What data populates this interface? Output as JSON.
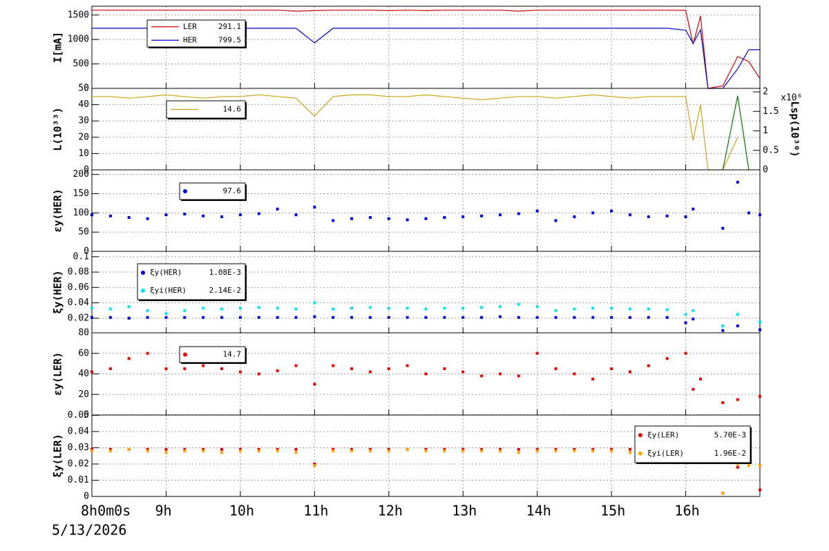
{
  "chart_data": [
    {
      "type": "line",
      "ylabel": "I[mA]",
      "xlim": [
        8,
        17
      ],
      "xticks": [
        8,
        9,
        10,
        11,
        12,
        13,
        14,
        15,
        16
      ],
      "ylim": [
        0,
        1680
      ],
      "yticks": [
        0,
        500,
        1000,
        1500
      ],
      "grid": true,
      "x": [
        8,
        8.25,
        8.5,
        8.75,
        9,
        9.25,
        9.5,
        9.75,
        10,
        10.25,
        10.5,
        10.75,
        11,
        11.25,
        11.5,
        11.75,
        12,
        12.25,
        12.5,
        12.75,
        13,
        13.25,
        13.5,
        13.75,
        14,
        14.25,
        14.5,
        14.75,
        15,
        15.25,
        15.5,
        15.75,
        16,
        16.1,
        16.2,
        16.3,
        16.5,
        16.7,
        16.85,
        17
      ],
      "series": [
        {
          "name": "LER",
          "legend_value": 291.1,
          "color": "#d00000",
          "values": [
            1600,
            1600,
            1600,
            1600,
            1600,
            1600,
            1600,
            1600,
            1600,
            1600,
            1600,
            1580,
            1590,
            1600,
            1600,
            1600,
            1590,
            1600,
            1590,
            1600,
            1600,
            1600,
            1600,
            1580,
            1600,
            1600,
            1600,
            1600,
            1600,
            1600,
            1600,
            1600,
            1595,
            900,
            1480,
            0,
            50,
            650,
            550,
            200
          ]
        },
        {
          "name": "HER",
          "legend_value": 799.5,
          "color": "#0000cc",
          "values": [
            1230,
            1230,
            1230,
            1230,
            1230,
            1230,
            1230,
            1230,
            1230,
            1230,
            1230,
            1230,
            930,
            1230,
            1230,
            1230,
            1230,
            1230,
            1230,
            1230,
            1230,
            1230,
            1230,
            1230,
            1230,
            1230,
            1230,
            1230,
            1230,
            1230,
            1230,
            1230,
            1190,
            920,
            1200,
            0,
            0,
            400,
            790,
            790
          ]
        }
      ]
    },
    {
      "type": "line",
      "ylabel": "L(10³³)",
      "y2label": "Lsp(10³⁰)",
      "y2multiplier": "x10⁶",
      "xlim": [
        8,
        17
      ],
      "xticks": [
        8,
        9,
        10,
        11,
        12,
        13,
        14,
        15,
        16
      ],
      "ylim": [
        0,
        50
      ],
      "yticks": [
        0,
        10,
        20,
        30,
        40,
        50
      ],
      "y2lim": [
        0,
        2.09
      ],
      "y2ticks": [
        0,
        0.5,
        1,
        1.5,
        2
      ],
      "grid": true,
      "x": [
        8,
        8.25,
        8.5,
        8.75,
        9,
        9.25,
        9.5,
        9.75,
        10,
        10.25,
        10.5,
        10.75,
        11,
        11.25,
        11.5,
        11.75,
        12,
        12.25,
        12.5,
        12.75,
        13,
        13.25,
        13.5,
        13.75,
        14,
        14.25,
        14.5,
        14.75,
        15,
        15.25,
        15.5,
        15.75,
        16,
        16.1,
        16.2,
        16.3,
        16.5,
        16.7,
        16.85,
        17
      ],
      "series": [
        {
          "legend_value": 14.6,
          "color": "#d4a017",
          "values": [
            45,
            45,
            44,
            45,
            46,
            45,
            44,
            45,
            45,
            46,
            45,
            44,
            33,
            45,
            46,
            46,
            45,
            45,
            46,
            45,
            44,
            43,
            44,
            45,
            45,
            44,
            45,
            46,
            45,
            44,
            45,
            45,
            45,
            18,
            40,
            0,
            0,
            20,
            null,
            null
          ]
        },
        {
          "axis": "y2",
          "color": "#007700",
          "values": [
            null,
            null,
            null,
            null,
            null,
            null,
            null,
            null,
            null,
            null,
            null,
            null,
            null,
            null,
            null,
            null,
            null,
            null,
            null,
            null,
            null,
            null,
            null,
            null,
            null,
            null,
            null,
            null,
            null,
            null,
            null,
            null,
            null,
            null,
            null,
            null,
            0,
            1.9,
            0,
            null
          ]
        }
      ]
    },
    {
      "type": "scatter",
      "ylabel": "εy(HER)",
      "xlim": [
        8,
        17
      ],
      "xticks": [
        8,
        9,
        10,
        11,
        12,
        13,
        14,
        15,
        16
      ],
      "ylim": [
        0,
        212
      ],
      "yticks": [
        0,
        50,
        100,
        150,
        200
      ],
      "grid": true,
      "x": [
        8,
        8.25,
        8.5,
        8.75,
        9,
        9.25,
        9.5,
        9.75,
        10,
        10.25,
        10.5,
        10.75,
        11,
        11.25,
        11.5,
        11.75,
        12,
        12.25,
        12.5,
        12.75,
        13,
        13.25,
        13.5,
        13.75,
        14,
        14.25,
        14.5,
        14.75,
        15,
        15.25,
        15.5,
        15.75,
        16,
        16.1,
        16.2,
        16.3,
        16.5,
        16.7,
        16.85,
        17
      ],
      "series": [
        {
          "legend_value": 97.6,
          "color": "#0000ee",
          "values": [
            95,
            92,
            88,
            85,
            95,
            97,
            92,
            90,
            95,
            98,
            110,
            95,
            115,
            80,
            85,
            88,
            85,
            82,
            85,
            88,
            90,
            92,
            95,
            98,
            105,
            80,
            90,
            100,
            105,
            95,
            90,
            92,
            90,
            110,
            null,
            null,
            60,
            180,
            100,
            95
          ]
        }
      ]
    },
    {
      "type": "scatter",
      "ylabel": "ξy(HER)",
      "xlim": [
        8,
        17
      ],
      "xticks": [
        8,
        9,
        10,
        11,
        12,
        13,
        14,
        15,
        16
      ],
      "ylim": [
        0.001,
        0.107
      ],
      "yticks": [
        0.02,
        0.04,
        0.06,
        0.08,
        0.1
      ],
      "grid": true,
      "x": [
        8,
        8.25,
        8.5,
        8.75,
        9,
        9.25,
        9.5,
        9.75,
        10,
        10.25,
        10.5,
        10.75,
        11,
        11.25,
        11.5,
        11.75,
        12,
        12.25,
        12.5,
        12.75,
        13,
        13.25,
        13.5,
        13.75,
        14,
        14.25,
        14.5,
        14.75,
        15,
        15.25,
        15.5,
        15.75,
        16,
        16.1,
        16.2,
        16.3,
        16.5,
        16.7,
        16.85,
        17
      ],
      "series": [
        {
          "name": "ξy(HER)",
          "legend_value": "1.08E-3",
          "color": "#0000dd",
          "values": [
            0.021,
            0.021,
            0.02,
            0.021,
            0.021,
            0.021,
            0.021,
            0.021,
            0.021,
            0.021,
            0.021,
            0.021,
            0.022,
            0.021,
            0.021,
            0.021,
            0.021,
            0.021,
            0.021,
            0.021,
            0.021,
            0.021,
            0.022,
            0.021,
            0.021,
            0.021,
            0.021,
            0.021,
            0.021,
            0.021,
            0.021,
            0.021,
            0.014,
            0.019,
            null,
            null,
            0.004,
            0.01,
            null,
            0.005
          ]
        },
        {
          "name": "ξyi(HER)",
          "legend_value": "2.14E-2",
          "color": "#00e5ee",
          "values": [
            0.033,
            0.032,
            0.035,
            0.03,
            0.026,
            0.03,
            0.033,
            0.032,
            0.033,
            0.034,
            0.033,
            0.032,
            0.04,
            0.032,
            0.033,
            0.034,
            0.033,
            0.033,
            0.032,
            0.033,
            0.033,
            0.034,
            0.035,
            0.038,
            0.035,
            0.03,
            0.032,
            0.033,
            0.033,
            0.032,
            0.032,
            0.031,
            0.025,
            0.03,
            null,
            null,
            0.01,
            0.025,
            null,
            0.015
          ]
        }
      ]
    },
    {
      "type": "scatter",
      "ylabel": "εy(LER)",
      "xlim": [
        8,
        17
      ],
      "xticks": [
        8,
        9,
        10,
        11,
        12,
        13,
        14,
        15,
        16
      ],
      "ylim": [
        0,
        80
      ],
      "yticks": [
        0,
        20,
        40,
        60,
        80
      ],
      "grid": true,
      "x": [
        8,
        8.25,
        8.5,
        8.75,
        9,
        9.25,
        9.5,
        9.75,
        10,
        10.25,
        10.5,
        10.75,
        11,
        11.25,
        11.5,
        11.75,
        12,
        12.25,
        12.5,
        12.75,
        13,
        13.25,
        13.5,
        13.75,
        14,
        14.25,
        14.5,
        14.75,
        15,
        15.25,
        15.5,
        15.75,
        16,
        16.1,
        16.2,
        16.3,
        16.5,
        16.7,
        16.85,
        17
      ],
      "series": [
        {
          "legend_value": 14.7,
          "color": "#ee0000",
          "values": [
            42,
            45,
            55,
            60,
            45,
            45,
            48,
            45,
            42,
            40,
            43,
            48,
            30,
            48,
            45,
            42,
            45,
            48,
            40,
            45,
            42,
            38,
            40,
            38,
            60,
            45,
            40,
            35,
            45,
            42,
            48,
            55,
            60,
            25,
            35,
            null,
            12,
            15,
            null,
            18
          ]
        }
      ]
    },
    {
      "type": "scatter",
      "ylabel": "ξy(LER)",
      "date": "5/13/2026",
      "xlim": [
        8,
        17
      ],
      "xticks": [
        {
          "value": 8,
          "label": "8h0m0s"
        },
        {
          "value": 9,
          "label": "9h"
        },
        {
          "value": 10,
          "label": "10h"
        },
        {
          "value": 11,
          "label": "11h"
        },
        {
          "value": 12,
          "label": "12h"
        },
        {
          "value": 13,
          "label": "13h"
        },
        {
          "value": 14,
          "label": "14h"
        },
        {
          "value": 15,
          "label": "15h"
        },
        {
          "value": 16,
          "label": "16h"
        }
      ],
      "ylim": [
        0,
        0.0502
      ],
      "yticks": [
        0,
        0.01,
        0.02,
        0.03,
        0.04,
        0.05
      ],
      "grid": true,
      "x": [
        8,
        8.25,
        8.5,
        8.75,
        9,
        9.25,
        9.5,
        9.75,
        10,
        10.25,
        10.5,
        10.75,
        11,
        11.25,
        11.5,
        11.75,
        12,
        12.25,
        12.5,
        12.75,
        13,
        13.25,
        13.5,
        13.75,
        14,
        14.25,
        14.5,
        14.75,
        15,
        15.25,
        15.5,
        15.75,
        16,
        16.1,
        16.2,
        16.3,
        16.5,
        16.7,
        16.85,
        17
      ],
      "series": [
        {
          "name": "ξy(LER)",
          "legend_value": "5.70E-3",
          "color": "#ee0000",
          "values": [
            0.029,
            0.029,
            0.029,
            0.029,
            0.029,
            0.029,
            0.029,
            0.029,
            0.029,
            0.029,
            0.029,
            0.029,
            0.02,
            0.029,
            0.029,
            0.029,
            0.029,
            0.029,
            0.029,
            0.029,
            0.029,
            0.029,
            0.029,
            0.029,
            0.029,
            0.029,
            0.029,
            0.029,
            0.029,
            0.029,
            0.029,
            0.029,
            0.025,
            0.027,
            null,
            null,
            0.002,
            0.018,
            0.021,
            0.004
          ]
        },
        {
          "name": "ξyi(LER)",
          "legend_value": "1.96E-2",
          "color": "#ffa500",
          "values": [
            0.028,
            0.028,
            0.029,
            0.028,
            0.027,
            0.028,
            0.028,
            0.027,
            0.028,
            0.028,
            0.028,
            0.027,
            0.019,
            0.028,
            0.028,
            0.028,
            0.028,
            0.029,
            0.028,
            0.028,
            0.028,
            0.028,
            0.028,
            0.027,
            0.028,
            0.028,
            0.028,
            0.028,
            0.028,
            0.027,
            0.028,
            0.028,
            0.023,
            0.026,
            null,
            null,
            0.002,
            0.02,
            0.019,
            0.019
          ]
        }
      ]
    }
  ]
}
